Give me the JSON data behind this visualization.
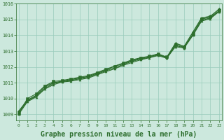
{
  "background_color": "#cce8dd",
  "plot_bg_color": "#cce8dd",
  "grid_color": "#99ccbb",
  "line_color": "#2d6e2d",
  "marker_color": "#2d6e2d",
  "xlabel": "Graphe pression niveau de la mer (hPa)",
  "xlabel_fontsize": 7,
  "ylabel_ticks": [
    1009,
    1010,
    1011,
    1012,
    1013,
    1014,
    1015
  ],
  "ytick_top": 1016,
  "xticks": [
    0,
    1,
    2,
    3,
    4,
    5,
    6,
    7,
    8,
    9,
    10,
    11,
    12,
    13,
    14,
    15,
    16,
    17,
    18,
    19,
    20,
    21,
    22,
    23
  ],
  "xlim": [
    -0.3,
    23.3
  ],
  "ylim": [
    1008.6,
    1016.0
  ],
  "series": [
    [
      1009.2,
      1009.9,
      1010.2,
      1010.75,
      1011.0,
      1011.1,
      1011.2,
      1011.3,
      1011.4,
      1011.6,
      1011.8,
      1012.05,
      1012.2,
      1012.4,
      1012.55,
      1012.65,
      1012.8,
      1012.6,
      1013.5,
      1013.3,
      1014.2,
      1015.1,
      1015.2,
      1015.65
    ],
    [
      1009.0,
      1009.8,
      1010.1,
      1010.6,
      1010.88,
      1011.05,
      1011.1,
      1011.2,
      1011.3,
      1011.5,
      1011.7,
      1011.88,
      1012.1,
      1012.28,
      1012.45,
      1012.58,
      1012.72,
      1012.55,
      1013.28,
      1013.2,
      1014.0,
      1014.9,
      1015.05,
      1015.5
    ],
    [
      1009.05,
      1010.0,
      1010.3,
      1010.8,
      1011.08,
      1011.15,
      1011.25,
      1011.35,
      1011.45,
      1011.65,
      1011.85,
      1012.05,
      1012.25,
      1012.45,
      1012.58,
      1012.68,
      1012.83,
      1012.63,
      1013.4,
      1013.25,
      1014.08,
      1015.02,
      1015.15,
      1015.55
    ],
    [
      1009.1,
      1009.85,
      1010.15,
      1010.65,
      1010.95,
      1011.08,
      1011.15,
      1011.25,
      1011.35,
      1011.55,
      1011.75,
      1011.95,
      1012.15,
      1012.35,
      1012.5,
      1012.6,
      1012.76,
      1012.58,
      1013.35,
      1013.22,
      1014.05,
      1014.95,
      1015.1,
      1015.52
    ]
  ]
}
